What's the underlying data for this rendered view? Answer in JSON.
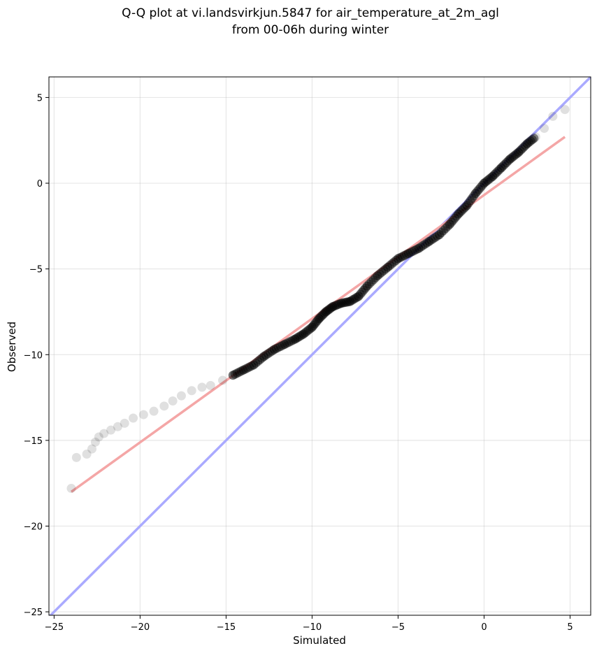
{
  "chart_data": {
    "type": "scatter",
    "title_lines": [
      "Q-Q plot at vi.landsvirkjun.5847 for air_temperature_at_2m_agl",
      "from 00-06h during winter"
    ],
    "xlabel": "Simulated",
    "ylabel": "Observed",
    "xlim": [
      -25.3,
      6.2
    ],
    "ylim": [
      -25.2,
      6.2
    ],
    "x_ticks": [
      -25,
      -20,
      -15,
      -10,
      -5,
      0,
      5
    ],
    "y_ticks": [
      5,
      0,
      -5,
      -10,
      -15,
      -20,
      -25
    ],
    "grid": true,
    "reference_line": {
      "x": [
        -25.3,
        6.2
      ],
      "y": [
        -25.3,
        6.2
      ],
      "color": "#aaaaff"
    },
    "fit_line": {
      "x": [
        -24.0,
        4.7
      ],
      "y": [
        -18.0,
        2.7
      ],
      "color": "#f4a6a6"
    },
    "point_color": "#000000",
    "series": [
      {
        "x": [
          -24.0,
          -23.7,
          -23.1,
          -22.8,
          -22.6,
          -22.4,
          -22.1,
          -21.7,
          -21.3,
          -20.9,
          -20.4,
          -19.8,
          -19.2,
          -18.6,
          -18.1,
          -17.6,
          -17.0,
          -16.4,
          -15.9,
          -15.2,
          -14.6,
          -14.0,
          -13.4,
          -12.8,
          -12.2,
          -11.6,
          -11.0,
          -10.5,
          -10.0,
          -9.6,
          -9.2,
          -8.8,
          -8.3,
          -7.8,
          -7.3,
          -6.8,
          -6.2,
          -5.6,
          -5.0,
          -4.4,
          -3.8,
          -3.2,
          -2.6,
          -2.0,
          -1.5,
          -1.0,
          -0.5,
          0.0,
          0.5,
          1.0,
          1.5,
          2.0,
          2.5,
          3.0,
          3.5,
          4.0,
          4.7
        ],
        "y": [
          -17.8,
          -16.0,
          -15.8,
          -15.5,
          -15.1,
          -14.8,
          -14.6,
          -14.4,
          -14.2,
          -14.0,
          -13.7,
          -13.5,
          -13.3,
          -13.0,
          -12.7,
          -12.4,
          -12.1,
          -11.9,
          -11.8,
          -11.5,
          -11.2,
          -10.9,
          -10.6,
          -10.1,
          -9.7,
          -9.4,
          -9.1,
          -8.8,
          -8.4,
          -7.9,
          -7.5,
          -7.2,
          -7.0,
          -6.9,
          -6.6,
          -6.0,
          -5.4,
          -4.9,
          -4.4,
          -4.1,
          -3.8,
          -3.4,
          -3.0,
          -2.4,
          -1.8,
          -1.3,
          -0.6,
          0.0,
          0.4,
          0.9,
          1.4,
          1.8,
          2.3,
          2.7,
          3.2,
          3.9,
          4.3
        ]
      }
    ]
  }
}
